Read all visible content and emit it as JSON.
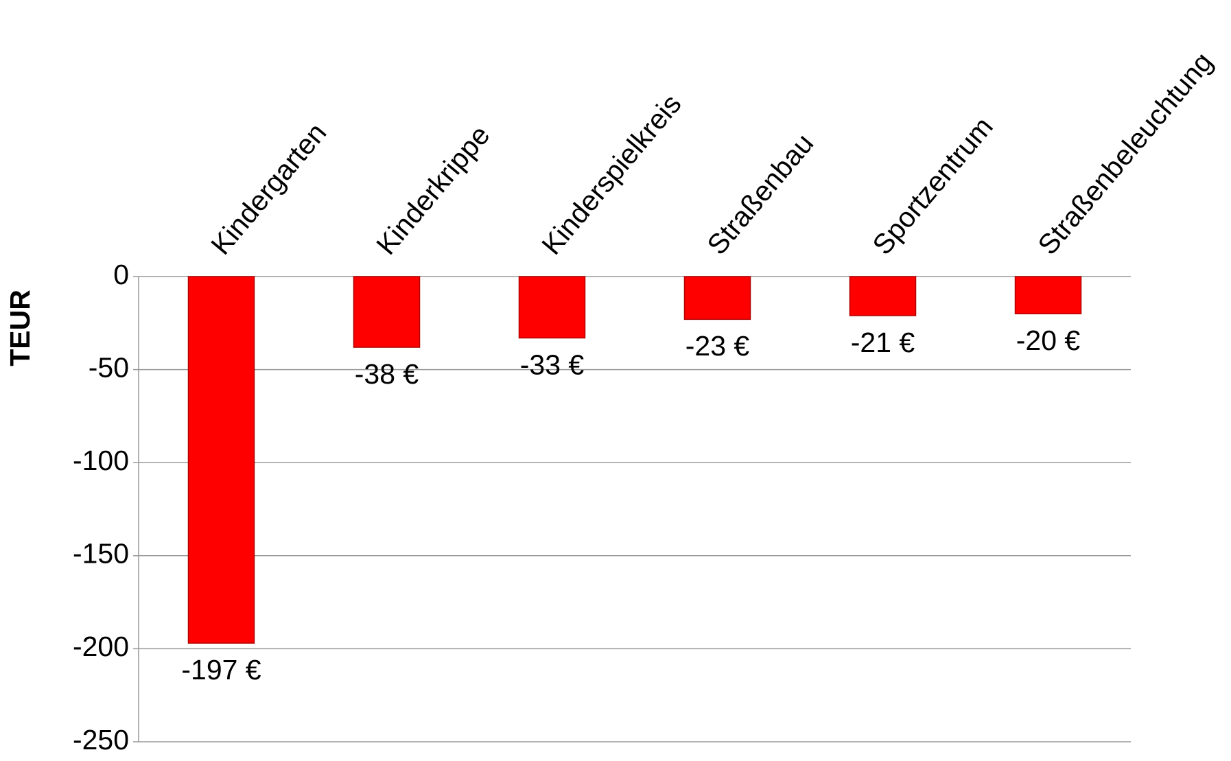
{
  "chart_data": {
    "type": "bar",
    "y_label": "TEUR",
    "categories": [
      "Kindergarten",
      "Kinderkrippe",
      "Kinderspielkreis",
      "Straßenbau",
      "Sportzentrum",
      "Straßenbeleuchtung"
    ],
    "values": [
      -197,
      -38,
      -33,
      -23,
      -21,
      -20
    ],
    "value_labels": [
      "-197 €",
      "-38 €",
      "-33 €",
      "-23 €",
      "-21 €",
      "-20 €"
    ],
    "color": "#ff0000",
    "ylim": [
      -250,
      0
    ],
    "yticks": [
      0,
      -50,
      -100,
      -150,
      -200,
      -250
    ],
    "grid": true
  }
}
